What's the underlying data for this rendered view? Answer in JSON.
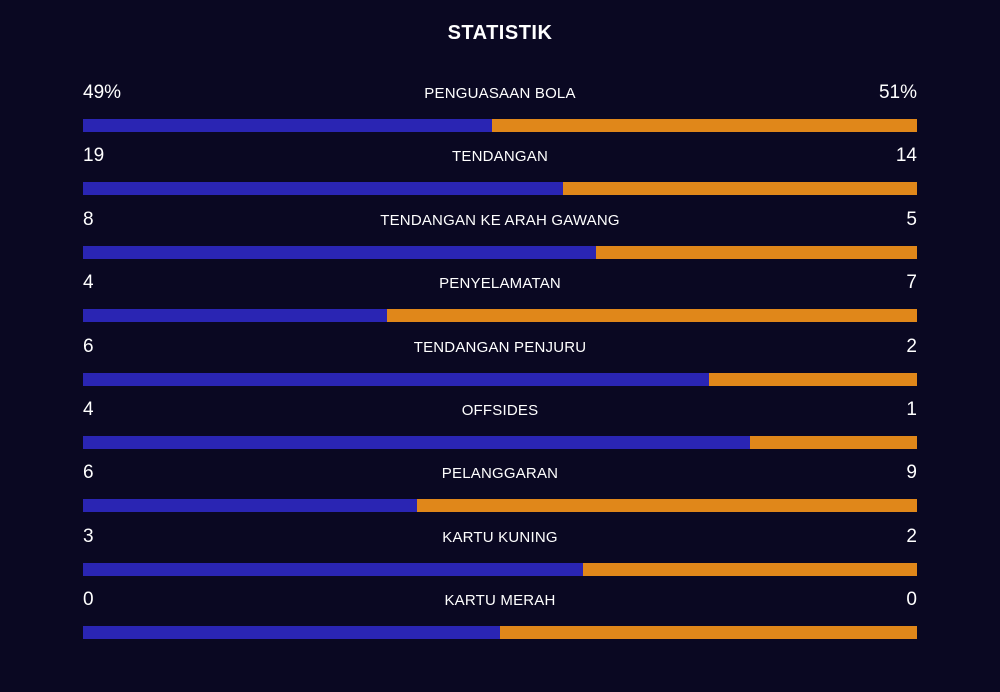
{
  "title": "STATISTIK",
  "colors": {
    "background": "#0a0822",
    "home": "#2a25b3",
    "away": "#e0871a"
  },
  "stats": [
    {
      "label": "PENGUASAAN BOLA",
      "home": "49%",
      "away": "51%",
      "home_share": 0.49
    },
    {
      "label": "TENDANGAN",
      "home": "19",
      "away": "14",
      "home_share": 0.576
    },
    {
      "label": "TENDANGAN KE ARAH GAWANG",
      "home": "8",
      "away": "5",
      "home_share": 0.615
    },
    {
      "label": "PENYELAMATAN",
      "home": "4",
      "away": "7",
      "home_share": 0.364
    },
    {
      "label": "TENDANGAN PENJURU",
      "home": "6",
      "away": "2",
      "home_share": 0.75
    },
    {
      "label": "OFFSIDES",
      "home": "4",
      "away": "1",
      "home_share": 0.8
    },
    {
      "label": "PELANGGARAN",
      "home": "6",
      "away": "9",
      "home_share": 0.4
    },
    {
      "label": "KARTU KUNING",
      "home": "3",
      "away": "2",
      "home_share": 0.6
    },
    {
      "label": "KARTU MERAH",
      "home": "0",
      "away": "0",
      "home_share": 0.5
    }
  ]
}
